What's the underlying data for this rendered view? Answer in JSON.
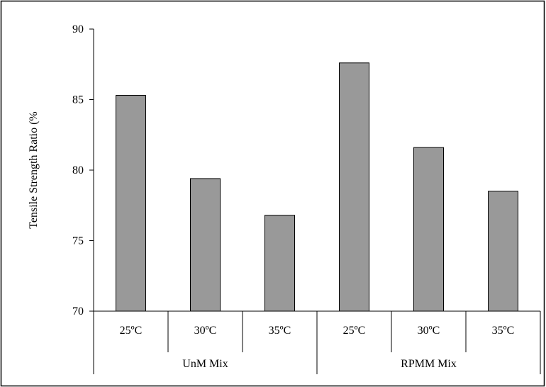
{
  "chart_data": {
    "type": "bar",
    "title": "",
    "ylabel": "Tensile Strength Ratio (%",
    "xlabel": "",
    "ylim": [
      70,
      90
    ],
    "yticks": [
      70,
      75,
      80,
      85,
      90
    ],
    "grid": false,
    "legend": "none",
    "bar_color": "#999999",
    "groups": [
      {
        "label": "UnM Mix",
        "categories": [
          "25ºC",
          "30ºC",
          "35ºC"
        ],
        "values": [
          85.3,
          79.4,
          76.8
        ]
      },
      {
        "label": "RPMM Mix",
        "categories": [
          "25ºC",
          "30ºC",
          "35ºC"
        ],
        "values": [
          87.6,
          81.6,
          78.5
        ]
      }
    ]
  }
}
